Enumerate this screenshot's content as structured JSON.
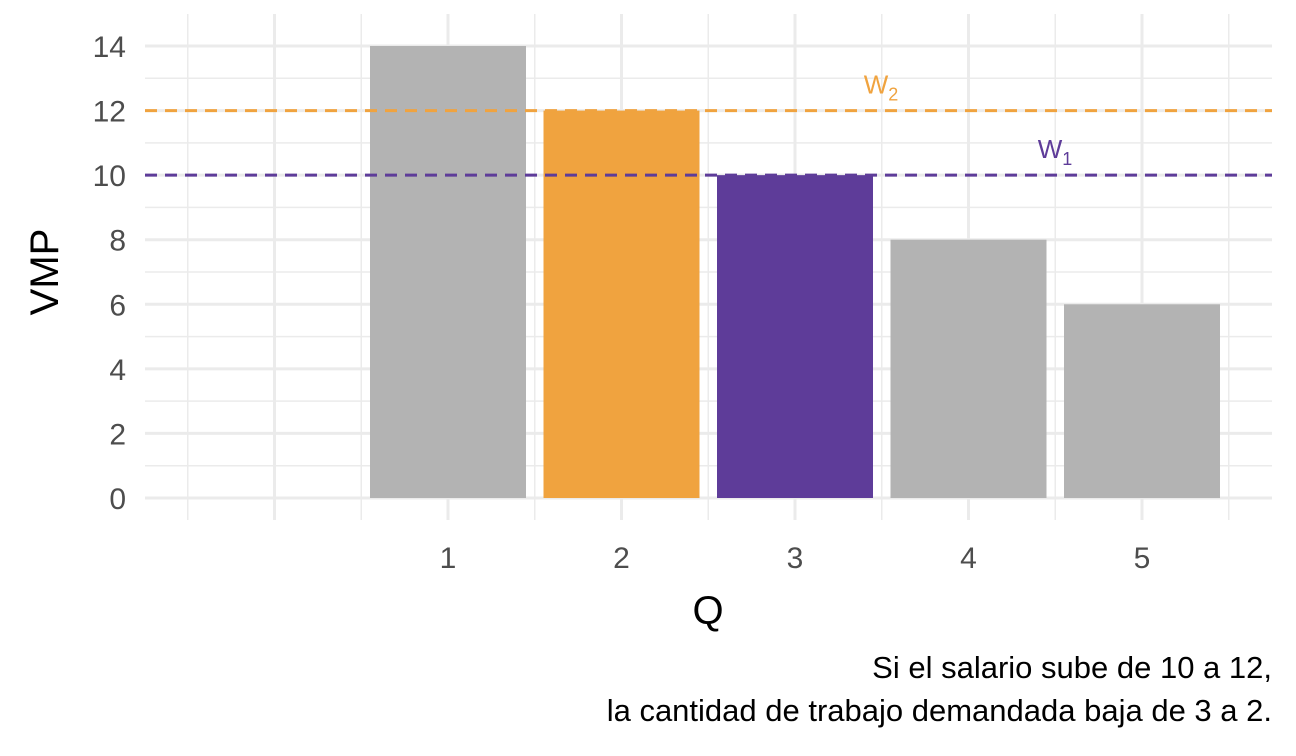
{
  "chart_data": {
    "type": "bar",
    "categories": [
      "1",
      "2",
      "3",
      "4",
      "5"
    ],
    "values": [
      14,
      12,
      10,
      8,
      6
    ],
    "bar_colors": [
      "#b3b3b3",
      "#f0a33f",
      "#5e3c99",
      "#b3b3b3",
      "#b3b3b3"
    ],
    "xlabel": "Q",
    "ylabel": "VMP",
    "ylim": [
      0,
      14
    ],
    "yticks": [
      0,
      2,
      4,
      6,
      8,
      10,
      12,
      14
    ],
    "grid": true,
    "hlines": [
      {
        "name": "W",
        "sub": "2",
        "y": 12,
        "color": "#f0a33f"
      },
      {
        "name": "W",
        "sub": "1",
        "y": 10,
        "color": "#5e3c99"
      }
    ],
    "caption": [
      "Si el salario sube de 10 a 12,",
      "la cantidad de trabajo demandada baja de 3 a 2."
    ]
  }
}
